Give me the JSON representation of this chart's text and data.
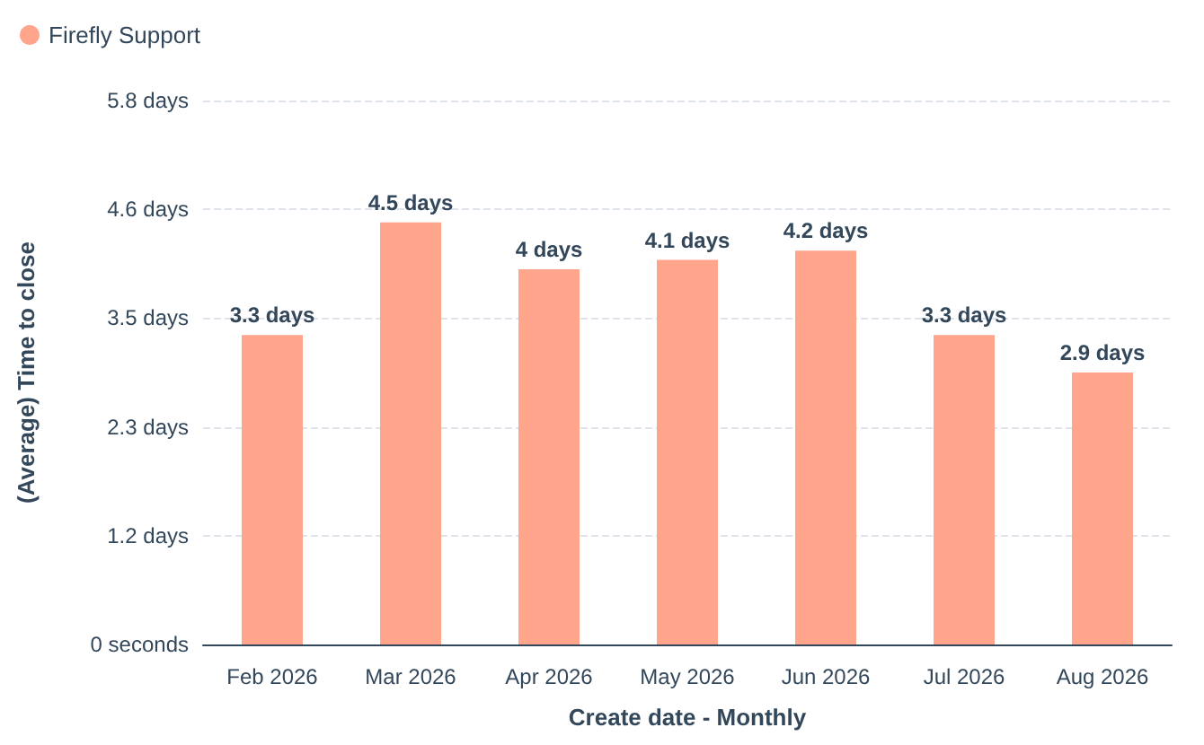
{
  "chart_data": {
    "type": "bar",
    "xlabel": "Create date - Monthly",
    "ylabel": "(Average) Time to close",
    "categories": [
      "Feb 2026",
      "Mar 2026",
      "Apr 2026",
      "May 2026",
      "Jun 2026",
      "Jul 2026",
      "Aug 2026"
    ],
    "series": [
      {
        "name": "Firefly Support",
        "color": "#ffa58c",
        "values": [
          3.3,
          4.5,
          4,
          4.1,
          4.2,
          3.3,
          2.9
        ],
        "value_labels": [
          "3.3 days",
          "4.5 days",
          "4 days",
          "4.1 days",
          "4.2 days",
          "3.3 days",
          "2.9 days"
        ]
      }
    ],
    "ylim": [
      0,
      5.8
    ],
    "yticks": [
      {
        "value": 0,
        "label": "0 seconds"
      },
      {
        "value": 1.16,
        "label": "1.2 days"
      },
      {
        "value": 2.32,
        "label": "2.3 days"
      },
      {
        "value": 3.48,
        "label": "3.5 days"
      },
      {
        "value": 4.64,
        "label": "4.6 days"
      },
      {
        "value": 5.8,
        "label": "5.8 days"
      }
    ],
    "grid": "y",
    "legend": "top left"
  }
}
